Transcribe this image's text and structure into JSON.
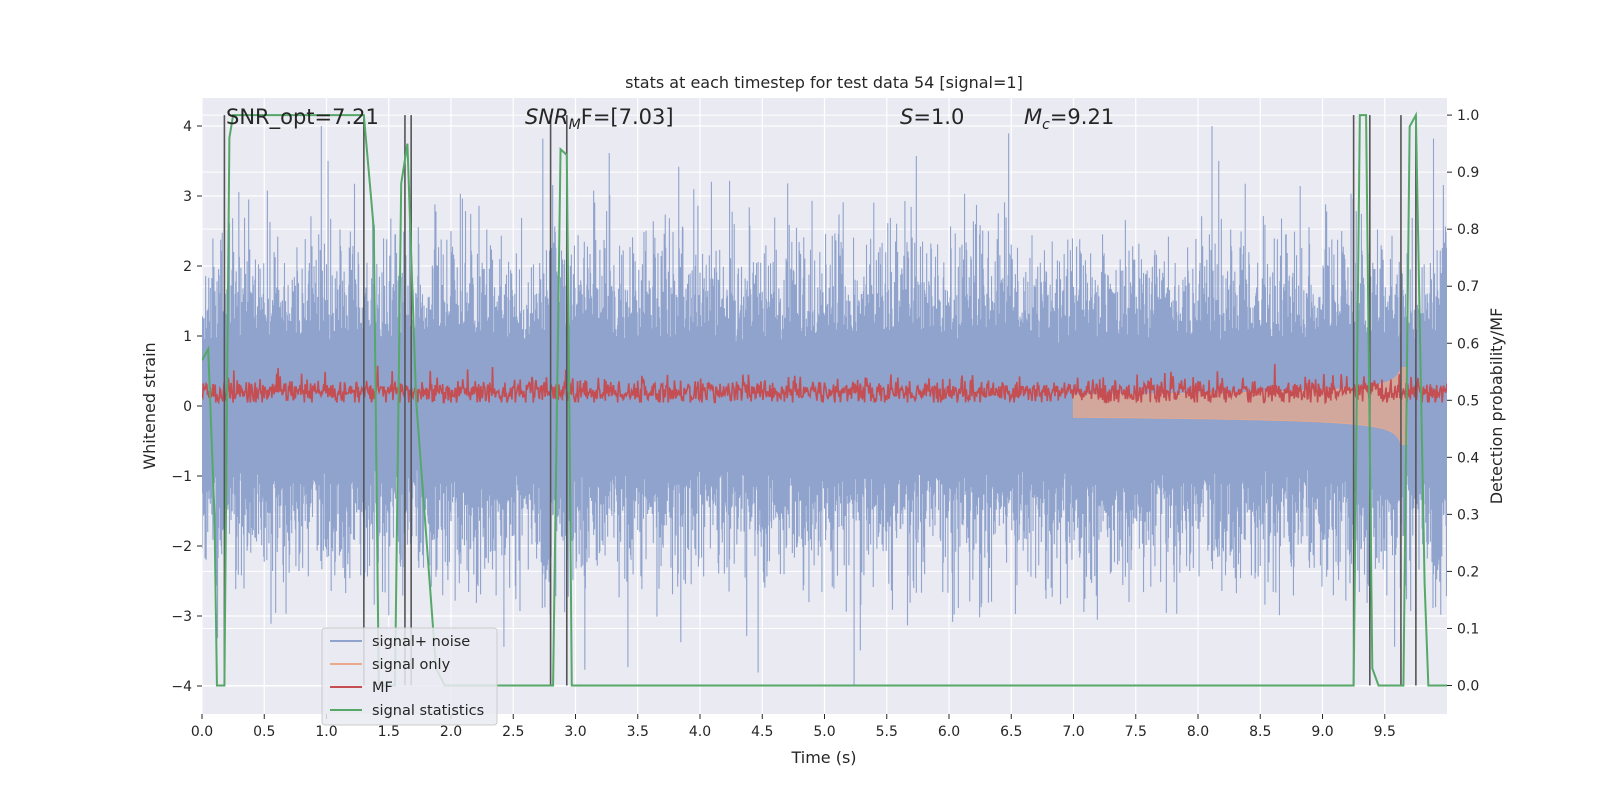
{
  "chart_data": {
    "type": "line",
    "title": "stats at each timestep for test data 54 [signal=1]",
    "xlabel": "Time (s)",
    "ylabel": "Whitened strain",
    "y2label": "Detection probability/MF",
    "xlim": [
      0,
      10
    ],
    "ylim": [
      -4.4,
      4.4
    ],
    "y2lim": [
      -0.05,
      1.03
    ],
    "xticks": [
      0.0,
      0.5,
      1.0,
      1.5,
      2.0,
      2.5,
      3.0,
      3.5,
      4.0,
      4.5,
      5.0,
      5.5,
      6.0,
      6.5,
      7.0,
      7.5,
      8.0,
      8.5,
      9.0,
      9.5
    ],
    "xtick_labels": [
      "0.0",
      "0.5",
      "1.0",
      "1.5",
      "2.0",
      "2.5",
      "3.0",
      "3.5",
      "4.0",
      "4.5",
      "5.0",
      "5.5",
      "6.0",
      "6.5",
      "7.0",
      "7.5",
      "8.0",
      "8.5",
      "9.0",
      "9.5"
    ],
    "yticks": [
      -4,
      -3,
      -2,
      -1,
      0,
      1,
      2,
      3,
      4
    ],
    "ytick_labels": [
      "−4",
      "−3",
      "−2",
      "−1",
      "0",
      "1",
      "2",
      "3",
      "4"
    ],
    "y2ticks": [
      0.0,
      0.1,
      0.2,
      0.3,
      0.4,
      0.5,
      0.6,
      0.7,
      0.8,
      0.9,
      1.0
    ],
    "y2tick_labels": [
      "0.0",
      "0.1",
      "0.2",
      "0.3",
      "0.4",
      "0.5",
      "0.6",
      "0.7",
      "0.8",
      "0.9",
      "1.0"
    ],
    "grid": true,
    "legend_placement": "lower-left",
    "annotations": {
      "snr_opt": "SNR_opt=7.21",
      "snr_mf_sym": "SNR",
      "snr_mf_sub": "M",
      "snr_mf_rest": "F=[7.03]",
      "s_sym": "S",
      "s_rest": "=1.0",
      "mc_sym": "M",
      "mc_sub": "c",
      "mc_rest": "=9.21"
    },
    "series": [
      {
        "name": "signal+ noise",
        "color": "#8fa3cd",
        "axis": "left",
        "description_values": {
          "typical_abs_max": 1.5,
          "peak_positive": 4.0,
          "peak_negative": -4.0
        }
      },
      {
        "name": "signal only",
        "color": "#e8a98c",
        "axis": "left",
        "chirp": {
          "start": 7.0,
          "merger": 9.65,
          "peak_amplitude": 1.0
        }
      },
      {
        "name": "MF",
        "color": "#c44e52",
        "axis": "left",
        "baseline": 0.2,
        "range": [
          0.05,
          0.6
        ]
      },
      {
        "name": "signal statistics",
        "color": "#55a868",
        "axis": "right",
        "x": [
          0.0,
          0.05,
          0.1,
          0.12,
          0.18,
          0.22,
          0.25,
          1.3,
          1.38,
          1.42,
          1.5,
          1.55,
          1.6,
          1.65,
          1.72,
          1.88,
          1.95,
          2.8,
          2.82,
          2.88,
          2.93,
          2.95,
          2.97,
          3.0,
          7.0,
          9.2,
          9.25,
          9.3,
          9.35,
          9.4,
          9.45,
          9.5,
          9.55,
          9.6,
          9.65,
          9.7,
          9.75,
          9.82,
          9.85,
          9.9,
          10.0
        ],
        "y": [
          0.57,
          0.59,
          0.3,
          0.0,
          0.0,
          0.96,
          1.0,
          1.0,
          0.8,
          0.0,
          0.0,
          0.0,
          0.88,
          0.95,
          0.5,
          0.03,
          0.0,
          0.0,
          0.0,
          0.94,
          0.93,
          0.5,
          0.0,
          0.0,
          0.0,
          0.0,
          0.0,
          1.0,
          1.0,
          0.03,
          0.0,
          0.0,
          0.0,
          0.0,
          0.0,
          0.98,
          1.0,
          0.18,
          0.0,
          0.0,
          0.0
        ]
      }
    ],
    "vertical_markers": {
      "color": "#555555",
      "x": [
        0.18,
        1.3,
        1.63,
        1.68,
        2.8,
        2.93,
        9.25,
        9.38,
        9.63,
        9.75
      ]
    }
  }
}
